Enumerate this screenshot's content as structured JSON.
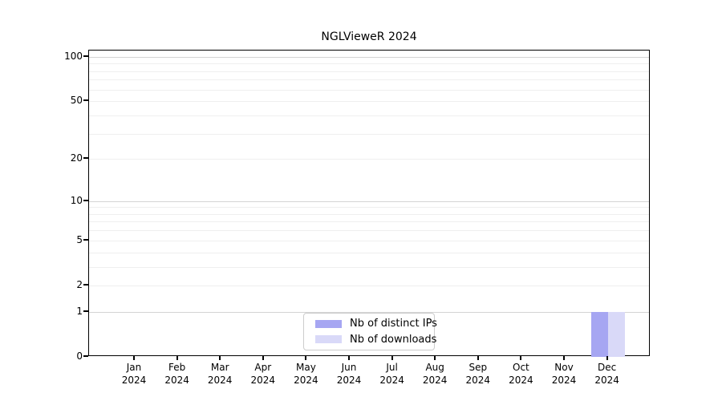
{
  "title": "NGLVieweR 2024",
  "chart_data": {
    "type": "bar",
    "title": "NGLVieweR 2024",
    "categories": [
      {
        "month": "Jan",
        "year": "2024"
      },
      {
        "month": "Feb",
        "year": "2024"
      },
      {
        "month": "Mar",
        "year": "2024"
      },
      {
        "month": "Apr",
        "year": "2024"
      },
      {
        "month": "May",
        "year": "2024"
      },
      {
        "month": "Jun",
        "year": "2024"
      },
      {
        "month": "Jul",
        "year": "2024"
      },
      {
        "month": "Aug",
        "year": "2024"
      },
      {
        "month": "Sep",
        "year": "2024"
      },
      {
        "month": "Oct",
        "year": "2024"
      },
      {
        "month": "Nov",
        "year": "2024"
      },
      {
        "month": "Dec",
        "year": "2024"
      }
    ],
    "series": [
      {
        "name": "Nb of distinct IPs",
        "color": "#a6a6f2",
        "values": [
          0,
          0,
          0,
          0,
          0,
          0,
          0,
          0,
          0,
          0,
          0,
          1
        ]
      },
      {
        "name": "Nb of downloads",
        "color": "#d9d9f8",
        "values": [
          0,
          0,
          0,
          0,
          0,
          0,
          0,
          0,
          0,
          0,
          0,
          1
        ]
      }
    ],
    "yaxis": {
      "scale": "log1p",
      "ticks": [
        0,
        1,
        2,
        5,
        10,
        20,
        50,
        100
      ],
      "gridlines_decade": [
        1,
        10,
        100
      ],
      "gridlines_minor": [
        2,
        3,
        4,
        5,
        6,
        7,
        8,
        9,
        20,
        30,
        40,
        50,
        60,
        70,
        80,
        90
      ],
      "ylim": [
        0,
        110
      ]
    },
    "xlabel": "",
    "ylabel": "",
    "grid": true,
    "legend": {
      "position": "bottom-center",
      "entries": [
        "Nb of distinct IPs",
        "Nb of downloads"
      ]
    }
  }
}
